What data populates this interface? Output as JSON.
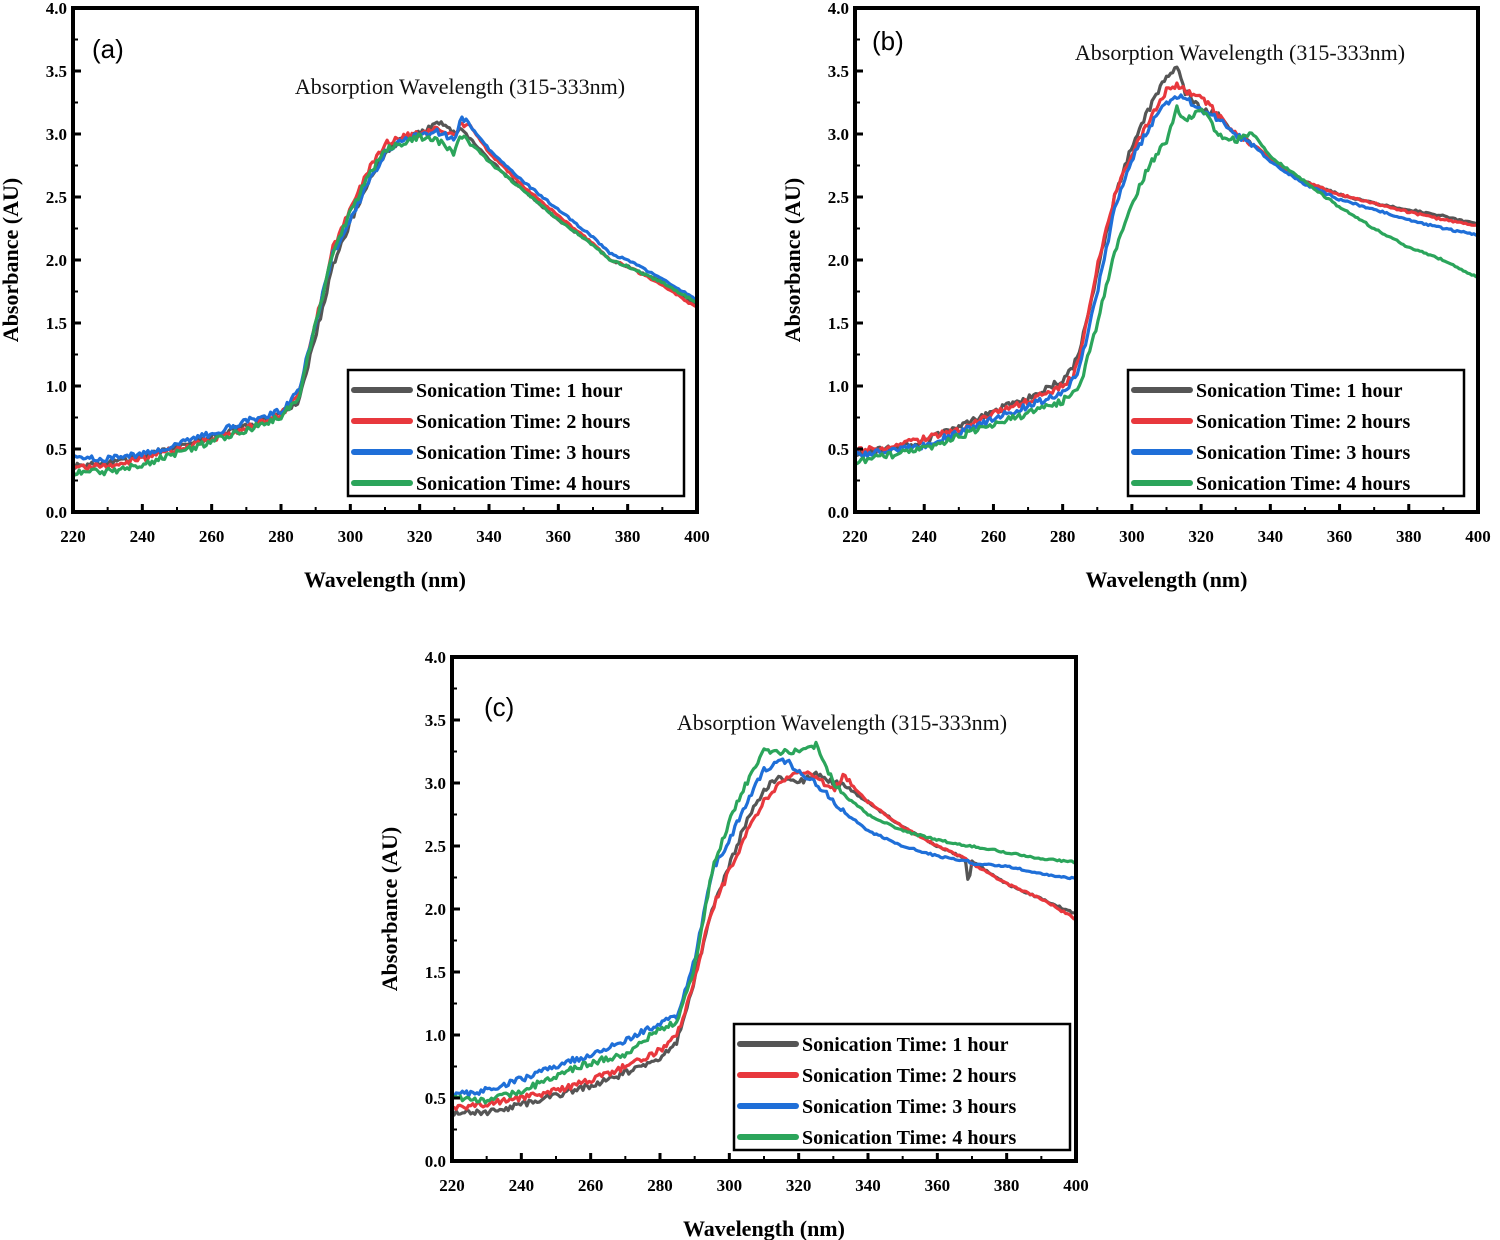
{
  "figure": {
    "description": "UV-Vis absorbance spectra at different sonication times, three panels"
  },
  "chart_data": [
    {
      "type": "line",
      "panel_label": "(a)",
      "annotation": "Absorption Wavelength (315-333nm)",
      "xlabel": "Wavelength (nm)",
      "ylabel": "Absorbance (AU)",
      "xlim": [
        220,
        400
      ],
      "ylim": [
        0.0,
        4.0
      ],
      "xticks": [
        "220",
        "240",
        "260",
        "280",
        "300",
        "320",
        "340",
        "360",
        "380",
        "400"
      ],
      "yticks": [
        "0.0",
        "0.5",
        "1.0",
        "1.5",
        "2.0",
        "2.5",
        "3.0",
        "3.5",
        "4.0"
      ],
      "grid": false,
      "legend_position": "bottom-right",
      "x": [
        220,
        230,
        240,
        250,
        260,
        270,
        280,
        285,
        290,
        295,
        300,
        305,
        310,
        315,
        320,
        325,
        330,
        332,
        335,
        340,
        350,
        360,
        370,
        375,
        380,
        390,
        400
      ],
      "series": [
        {
          "name": "Sonication Time: 1 hour",
          "color": "#555555",
          "values": [
            0.36,
            0.38,
            0.44,
            0.52,
            0.6,
            0.68,
            0.78,
            0.88,
            1.4,
            1.95,
            2.3,
            2.6,
            2.85,
            2.97,
            3.0,
            3.1,
            3.0,
            3.05,
            2.95,
            2.8,
            2.55,
            2.32,
            2.12,
            2.0,
            1.95,
            1.82,
            1.64
          ]
        },
        {
          "name": "Sonication Time: 2 hours",
          "color": "#e8383d",
          "values": [
            0.35,
            0.37,
            0.42,
            0.5,
            0.58,
            0.67,
            0.78,
            0.92,
            1.5,
            2.1,
            2.4,
            2.7,
            2.92,
            2.98,
            3.0,
            3.05,
            3.0,
            3.08,
            3.05,
            2.85,
            2.58,
            2.35,
            2.13,
            2.0,
            1.95,
            1.8,
            1.62
          ]
        },
        {
          "name": "Sonication Time: 3 hours",
          "color": "#1f6fd8",
          "values": [
            0.42,
            0.42,
            0.46,
            0.54,
            0.62,
            0.72,
            0.8,
            0.95,
            1.5,
            2.05,
            2.32,
            2.6,
            2.85,
            2.97,
            2.98,
            3.02,
            2.95,
            3.15,
            3.05,
            2.88,
            2.62,
            2.4,
            2.18,
            2.05,
            2.0,
            1.85,
            1.68
          ]
        },
        {
          "name": "Sonication Time: 4 hours",
          "color": "#2ba55b",
          "values": [
            0.31,
            0.32,
            0.37,
            0.47,
            0.56,
            0.65,
            0.76,
            0.9,
            1.5,
            2.05,
            2.38,
            2.65,
            2.88,
            2.92,
            2.98,
            2.95,
            2.85,
            2.98,
            2.92,
            2.78,
            2.55,
            2.32,
            2.12,
            2.0,
            1.95,
            1.82,
            1.66
          ]
        }
      ]
    },
    {
      "type": "line",
      "panel_label": "(b)",
      "annotation": "Absorption Wavelength (315-333nm)",
      "xlabel": "Wavelength (nm)",
      "ylabel": "Absorbance (AU)",
      "xlim": [
        220,
        400
      ],
      "ylim": [
        0.0,
        4.0
      ],
      "xticks": [
        "220",
        "240",
        "260",
        "280",
        "300",
        "320",
        "340",
        "360",
        "380",
        "400"
      ],
      "yticks": [
        "0.0",
        "0.5",
        "1.0",
        "1.5",
        "2.0",
        "2.5",
        "3.0",
        "3.5",
        "4.0"
      ],
      "grid": false,
      "legend_position": "bottom-right",
      "x": [
        220,
        230,
        240,
        250,
        260,
        270,
        280,
        283,
        285,
        290,
        295,
        300,
        305,
        310,
        313,
        315,
        320,
        325,
        330,
        335,
        340,
        350,
        360,
        370,
        380,
        390,
        400
      ],
      "series": [
        {
          "name": "Sonication Time: 1 hour",
          "color": "#555555",
          "values": [
            0.47,
            0.5,
            0.56,
            0.68,
            0.8,
            0.9,
            1.05,
            1.15,
            1.3,
            1.9,
            2.5,
            2.9,
            3.2,
            3.45,
            3.55,
            3.35,
            3.2,
            3.15,
            3.0,
            2.92,
            2.8,
            2.62,
            2.52,
            2.45,
            2.4,
            2.35,
            2.28
          ]
        },
        {
          "name": "Sonication Time: 2 hours",
          "color": "#e8383d",
          "values": [
            0.48,
            0.52,
            0.58,
            0.66,
            0.78,
            0.88,
            1.0,
            1.08,
            1.25,
            1.95,
            2.5,
            2.85,
            3.1,
            3.35,
            3.38,
            3.35,
            3.3,
            3.15,
            3.0,
            2.92,
            2.8,
            2.62,
            2.52,
            2.45,
            2.38,
            2.32,
            2.27
          ]
        },
        {
          "name": "Sonication Time: 3 hours",
          "color": "#1f6fd8",
          "values": [
            0.45,
            0.48,
            0.53,
            0.63,
            0.74,
            0.84,
            0.95,
            1.05,
            1.15,
            1.75,
            2.4,
            2.8,
            3.05,
            3.25,
            3.3,
            3.3,
            3.18,
            3.12,
            3.0,
            2.92,
            2.78,
            2.6,
            2.48,
            2.4,
            2.32,
            2.25,
            2.2
          ]
        },
        {
          "name": "Sonication Time: 4 hours",
          "color": "#2ba55b",
          "values": [
            0.4,
            0.45,
            0.5,
            0.6,
            0.7,
            0.78,
            0.88,
            0.95,
            1.0,
            1.5,
            2.05,
            2.45,
            2.75,
            2.95,
            3.2,
            3.1,
            3.2,
            3.0,
            2.95,
            3.0,
            2.82,
            2.62,
            2.42,
            2.25,
            2.1,
            2.0,
            1.86
          ]
        }
      ]
    },
    {
      "type": "line",
      "panel_label": "(c)",
      "annotation": "Absorption Wavelength (315-333nm)",
      "xlabel": "Wavelength (nm)",
      "ylabel": "Absorbance (AU)",
      "xlim": [
        220,
        400
      ],
      "ylim": [
        0.0,
        4.0
      ],
      "xticks": [
        "220",
        "240",
        "260",
        "280",
        "300",
        "320",
        "340",
        "360",
        "380",
        "400"
      ],
      "yticks": [
        "0.0",
        "0.5",
        "1.0",
        "1.5",
        "2.0",
        "2.5",
        "3.0",
        "3.5",
        "4.0"
      ],
      "grid": false,
      "legend_position": "bottom-right",
      "x": [
        220,
        230,
        240,
        250,
        260,
        270,
        280,
        285,
        290,
        295,
        300,
        305,
        310,
        315,
        320,
        325,
        330,
        333,
        340,
        350,
        360,
        368,
        369,
        370,
        380,
        390,
        400
      ],
      "series": [
        {
          "name": "Sonication Time: 1 hour",
          "color": "#555555",
          "values": [
            0.38,
            0.38,
            0.45,
            0.52,
            0.6,
            0.7,
            0.82,
            0.95,
            1.45,
            2.0,
            2.35,
            2.7,
            2.95,
            3.05,
            3.0,
            3.08,
            3.0,
            2.98,
            2.85,
            2.65,
            2.5,
            2.4,
            2.2,
            2.38,
            2.2,
            2.08,
            1.96
          ]
        },
        {
          "name": "Sonication Time: 2 hours",
          "color": "#e8383d",
          "values": [
            0.42,
            0.45,
            0.5,
            0.56,
            0.64,
            0.75,
            0.88,
            1.0,
            1.45,
            2.0,
            2.3,
            2.6,
            2.85,
            3.0,
            3.1,
            3.05,
            2.95,
            3.05,
            2.85,
            2.65,
            2.5,
            2.4,
            2.38,
            2.36,
            2.2,
            2.08,
            1.92
          ]
        },
        {
          "name": "Sonication Time: 3 hours",
          "color": "#1f6fd8",
          "values": [
            0.52,
            0.56,
            0.65,
            0.75,
            0.85,
            0.95,
            1.1,
            1.15,
            1.6,
            2.3,
            2.55,
            2.85,
            3.1,
            3.2,
            3.1,
            3.0,
            2.85,
            2.78,
            2.62,
            2.5,
            2.42,
            2.38,
            2.38,
            2.36,
            2.34,
            2.28,
            2.24
          ]
        },
        {
          "name": "Sonication Time: 4 hours",
          "color": "#2ba55b",
          "values": [
            0.5,
            0.48,
            0.55,
            0.68,
            0.78,
            0.85,
            1.05,
            1.1,
            1.55,
            2.3,
            2.7,
            3.0,
            3.25,
            3.25,
            3.25,
            3.3,
            3.0,
            2.92,
            2.75,
            2.62,
            2.55,
            2.5,
            2.5,
            2.5,
            2.45,
            2.4,
            2.37
          ]
        }
      ]
    }
  ]
}
